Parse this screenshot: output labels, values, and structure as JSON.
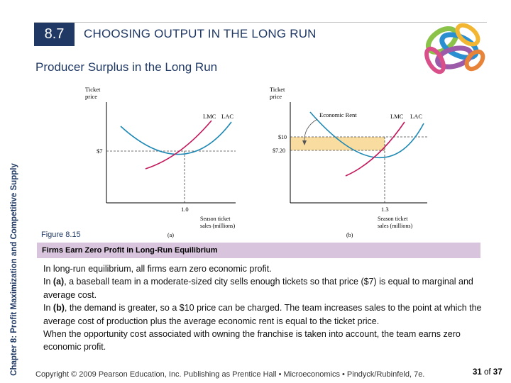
{
  "header": {
    "section_number": "8.7",
    "section_title": "CHOOSING OUTPUT IN THE LONG RUN",
    "slide_title": "Producer Surplus in the Long Run"
  },
  "sidebar": {
    "chapter_label": "Chapter 8: Profit Maximization and Competitive Supply"
  },
  "figure": {
    "label": "Figure 8.15",
    "caption": "Firms Earn Zero Profit in Long-Run Equilibrium",
    "panel_a": {
      "y_axis_label": [
        "Ticket",
        "price"
      ],
      "x_axis_label": [
        "Season ticket",
        "sales (millions)"
      ],
      "curve_lmc": "LMC",
      "curve_lac": "LAC",
      "price_tick": "$7",
      "quantity_tick": "1.0",
      "panel_tag": "(a)"
    },
    "panel_b": {
      "y_axis_label": [
        "Ticket",
        "price"
      ],
      "x_axis_label": [
        "Season ticket",
        "sales (millions)"
      ],
      "curve_lmc": "LMC",
      "curve_lac": "LAC",
      "annotation": "Economic Rent",
      "price_tick_high": "$10",
      "price_tick_low": "$7.20",
      "quantity_tick": "1.3",
      "panel_tag": "(b)"
    }
  },
  "body": {
    "paragraphs": [
      {
        "prefix": "In long-run equilibrium, all firms earn zero economic profit.",
        "bold": "",
        "suffix": ""
      },
      {
        "prefix": "In ",
        "bold": "(a)",
        "suffix": ", a baseball team in a moderate-sized city sells enough tickets so that price ($7) is equal to marginal and average cost."
      },
      {
        "prefix": "In ",
        "bold": "(b)",
        "suffix": ", the demand is greater, so a $10 price can be charged. The team increases sales to the point at which the average cost of production plus the average economic rent is equal to the ticket price."
      },
      {
        "prefix": "When the opportunity cost associated with owning the franchise is taken into account, the team earns zero economic profit.",
        "bold": "",
        "suffix": ""
      }
    ]
  },
  "footer": {
    "copyright": "Copyright © 2009 Pearson Education, Inc. Publishing as Prentice Hall • Microeconomics • Pindyck/Rubinfeld, 7e.",
    "page_current": "31",
    "page_of": "of",
    "page_total": "37"
  },
  "colors": {
    "navy": "#1f3864",
    "caption_bg": "#d9c4dd",
    "lmc_curve": "#c2185b",
    "lac_curve": "#1e88b4",
    "rent_fill": "#f8dca0"
  }
}
